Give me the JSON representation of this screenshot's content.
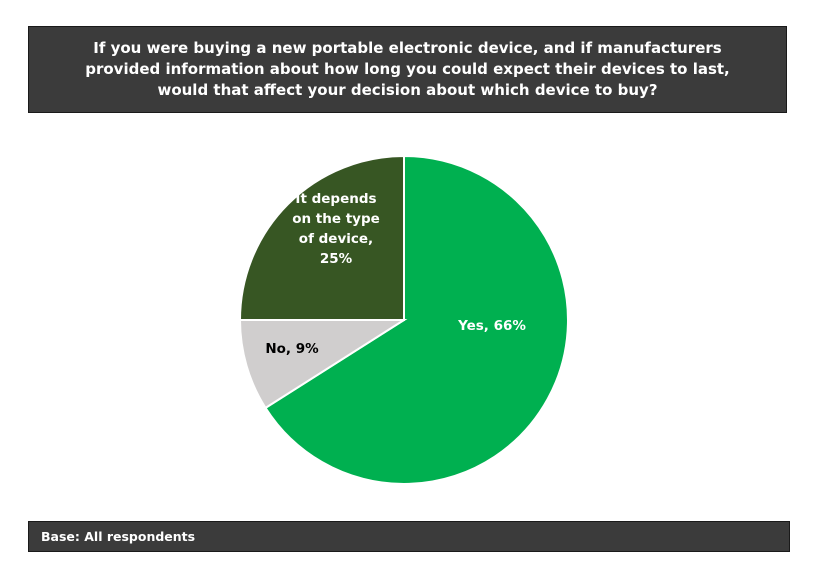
{
  "title": "If you were buying a new portable electronic device, and if manufacturers\nprovided information about how long you could expect their devices to last,\nwould that affect your decision about which device to buy?",
  "footer": "Base: All respondents",
  "chart_data": {
    "type": "pie",
    "slices": [
      {
        "name": "Yes",
        "label": "Yes, 66%",
        "value": 66,
        "color": "#00b050",
        "label_color": "#ffffff"
      },
      {
        "name": "No",
        "label": "No, 9%",
        "value": 9,
        "color": "#d0cece",
        "label_color": "#000000"
      },
      {
        "name": "It depends on the type of device",
        "label": "It depends\non the type\nof device,\n25%",
        "value": 25,
        "color": "#375623",
        "label_color": "#ffffff"
      }
    ],
    "start": "12 o'clock",
    "direction": "clockwise"
  }
}
